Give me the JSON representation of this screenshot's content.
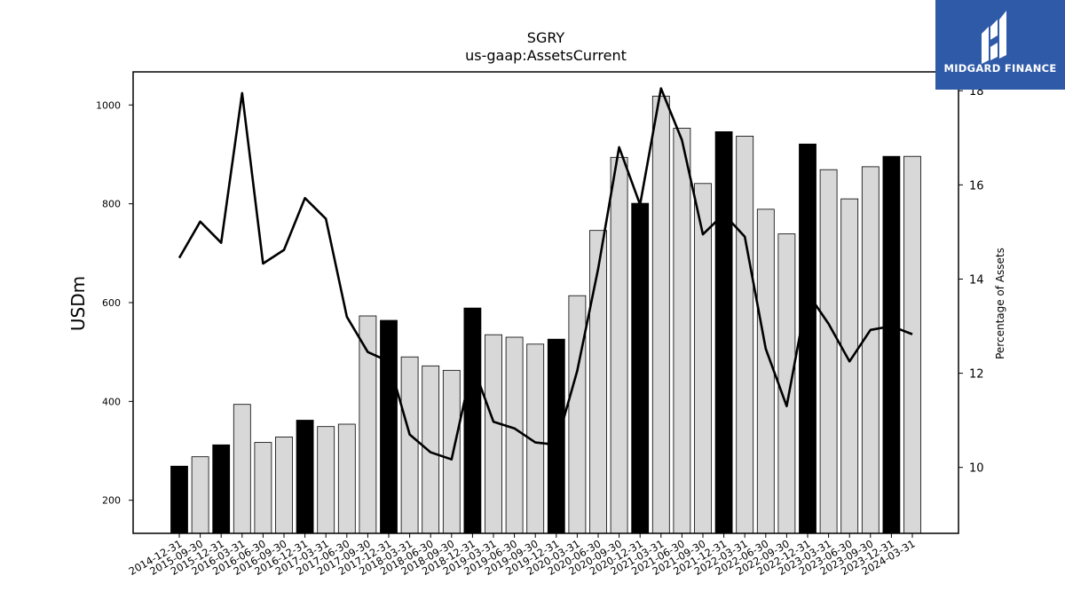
{
  "chart_data": {
    "type": "bar",
    "title": "SGRY",
    "subtitle": "us-gaap:AssetsCurrent",
    "ylabel": "USDm",
    "y2label": "Percentage of Assets",
    "ylim": [
      133,
      1067
    ],
    "y2lim": [
      8.6,
      18.4
    ],
    "yticks": [
      200,
      400,
      600,
      800,
      1000
    ],
    "y2ticks": [
      10,
      12,
      14,
      16,
      18
    ],
    "grid": false,
    "categories": [
      "2014-12-31",
      "2015-09-30",
      "2015-12-31",
      "2016-03-31",
      "2016-06-30",
      "2016-09-30",
      "2016-12-31",
      "2017-03-31",
      "2017-06-30",
      "2017-09-30",
      "2017-12-31",
      "2018-03-31",
      "2018-06-30",
      "2018-09-30",
      "2018-12-31",
      "2019-03-31",
      "2019-06-30",
      "2019-09-30",
      "2019-12-31",
      "2020-03-31",
      "2020-06-30",
      "2020-09-30",
      "2020-12-31",
      "2021-03-31",
      "2021-06-30",
      "2021-09-30",
      "2021-12-31",
      "2022-03-31",
      "2022-06-30",
      "2022-09-30",
      "2022-12-31",
      "2023-03-31",
      "2023-06-30",
      "2023-09-30",
      "2023-12-31",
      "2024-03-31"
    ],
    "series": [
      {
        "kind": "bar",
        "values": [
          269,
          288,
          312,
          394,
          317,
          328,
          362,
          349,
          354,
          573,
          564,
          490,
          472,
          463,
          589,
          535,
          530,
          516,
          526,
          614,
          746,
          894,
          801,
          1018,
          953,
          841,
          946,
          937,
          789,
          739,
          921,
          869,
          810,
          875,
          896,
          896
        ],
        "highlight": [
          true,
          false,
          true,
          false,
          false,
          false,
          true,
          false,
          false,
          false,
          true,
          false,
          false,
          false,
          true,
          false,
          false,
          false,
          true,
          false,
          false,
          false,
          true,
          false,
          false,
          false,
          true,
          false,
          false,
          false,
          true,
          false,
          false,
          false,
          true,
          false
        ],
        "highlight_color": "#000000",
        "color": "#d8d8d8",
        "edge_color": "#000000"
      },
      {
        "kind": "line",
        "axis": "right",
        "values": [
          14.45,
          15.22,
          14.77,
          17.95,
          14.33,
          14.62,
          15.72,
          15.28,
          13.2,
          12.45,
          12.25,
          10.7,
          10.32,
          10.17,
          12.18,
          10.97,
          10.83,
          10.53,
          10.48,
          12.05,
          14.22,
          16.8,
          15.58,
          18.05,
          16.95,
          14.95,
          15.38,
          14.9,
          12.52,
          11.3,
          13.7,
          13.05,
          12.25,
          12.92,
          13.0,
          12.83
        ]
      }
    ]
  },
  "logo": {
    "text": "MIDGARD FINANCE"
  }
}
